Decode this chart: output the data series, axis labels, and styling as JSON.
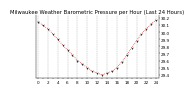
{
  "title": "Milwaukee Weather Barometric Pressure per Hour (Last 24 Hours)",
  "hours": [
    0,
    1,
    2,
    3,
    4,
    5,
    6,
    7,
    8,
    9,
    10,
    11,
    12,
    13,
    14,
    15,
    16,
    17,
    18,
    19,
    20,
    21,
    22,
    23,
    24
  ],
  "pressure": [
    30.15,
    30.1,
    30.05,
    29.98,
    29.9,
    29.82,
    29.75,
    29.68,
    29.6,
    29.55,
    29.5,
    29.45,
    29.42,
    29.4,
    29.42,
    29.45,
    29.5,
    29.58,
    29.68,
    29.78,
    29.88,
    29.98,
    30.05,
    30.12,
    30.18
  ],
  "line_color": "#dd0000",
  "marker_color": "#222222",
  "bg_color": "#ffffff",
  "grid_color": "#999999",
  "ylim": [
    29.35,
    30.25
  ],
  "yticks": [
    29.4,
    29.5,
    29.6,
    29.7,
    29.8,
    29.9,
    30.0,
    30.1,
    30.2
  ],
  "xlim": [
    -0.5,
    24.5
  ],
  "xlabel_fontsize": 3.0,
  "ylabel_fontsize": 3.0,
  "title_fontsize": 3.8
}
